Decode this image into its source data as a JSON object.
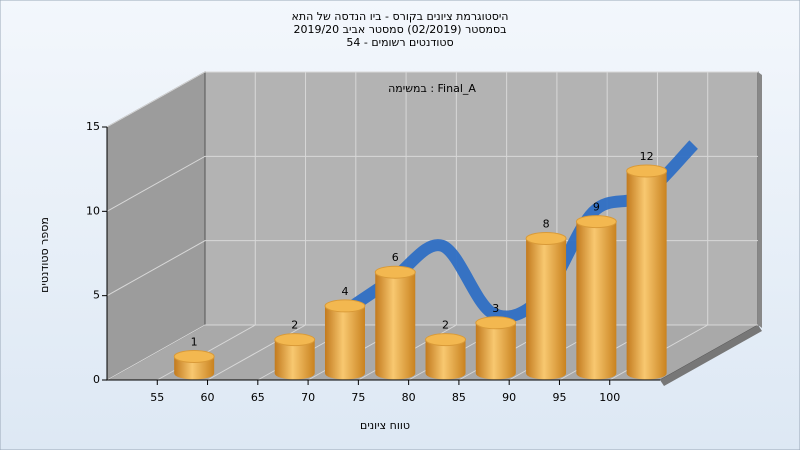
{
  "chart_data": {
    "type": "histogram",
    "title": [
      "היסטוגרמת ציונים בקורס - ביו הנדסה של התא",
      "בסמסטר  (02/2019)  סמסטר אביב 2019/20",
      "סטודנטים רשומים - 54"
    ],
    "annotation": "במשימה : Final_A",
    "xlabel": "טווח ציונים",
    "ylabel": "מספר סטודנטים",
    "bins": [
      55,
      60,
      65,
      70,
      75,
      80,
      85,
      90,
      95,
      100,
      105
    ],
    "counts": [
      1,
      0,
      2,
      4,
      6,
      2,
      3,
      8,
      9,
      12
    ],
    "color": "#e8a640",
    "trend": {
      "color": "#2f6fc4",
      "values": [
        null,
        null,
        2,
        4,
        6,
        2,
        3,
        8,
        9,
        12
      ]
    },
    "xlim": [
      50,
      105
    ],
    "xticks": [
      55,
      60,
      65,
      70,
      75,
      80,
      85,
      90,
      95,
      100
    ],
    "ylim": [
      0,
      15
    ],
    "yticks": [
      0,
      5,
      10,
      15
    ],
    "grid": true
  }
}
